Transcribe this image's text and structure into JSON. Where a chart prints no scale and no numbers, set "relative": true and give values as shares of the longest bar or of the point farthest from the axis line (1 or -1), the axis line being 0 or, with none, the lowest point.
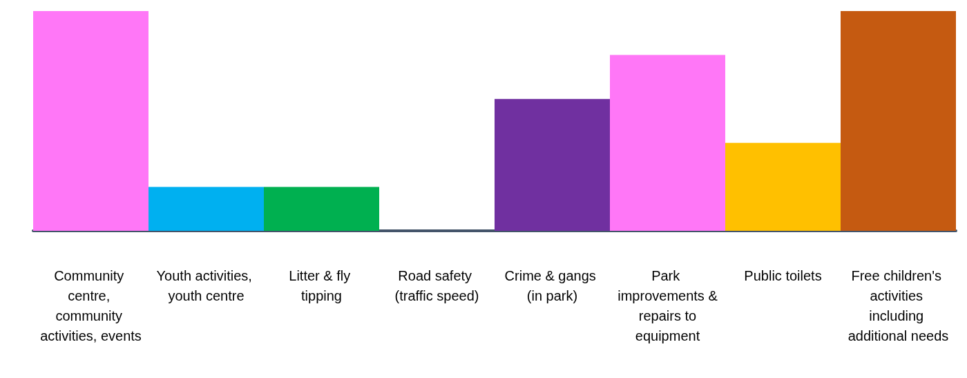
{
  "chart_data": {
    "type": "bar",
    "relative": true,
    "categories": [
      "Community centre, community activities, events",
      "Youth activities, youth centre",
      "Litter & fly tipping",
      "Road safety (traffic speed)",
      "Crime & gangs (in park)",
      "Park improvements & repairs to equipment",
      "Public toilets",
      "Free children's activities including additional needs"
    ],
    "values": [
      1,
      0.2,
      0.2,
      0,
      0.6,
      0.8,
      0.4,
      1
    ],
    "colors": [
      "#ff77f7",
      "#00b0f0",
      "#00b050",
      "#44546a",
      "#7030a0",
      "#ff77f7",
      "#ffc000",
      "#c55a11"
    ],
    "data_labels": false
  }
}
